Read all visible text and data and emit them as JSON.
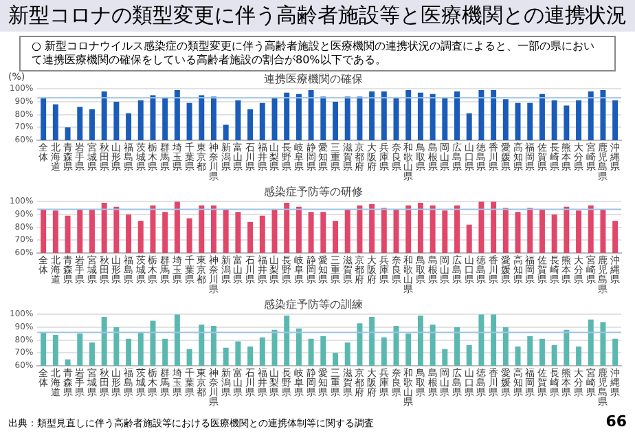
{
  "chart_data": [
    {
      "type": "other",
      "title": "新型コロナの類型変更に伴う高齢者施設等と医療機関との連携状況",
      "subtitle": "○ 新型コロナウイルス感染症の類型変更に伴う高齢者施設と医療機関の連携状況の調査によると、一部の県において連携医療機関の確保をしている高齢者施設の割合が80%以下である。"
    },
    {
      "type": "bar",
      "title": "連携医療機関の確保",
      "ylabel": "(%)",
      "categories": [
        "全体",
        "北海道",
        "青森県",
        "岩手県",
        "宮城県",
        "秋田県",
        "山形県",
        "福島県",
        "茨城県",
        "栃木県",
        "群馬県",
        "埼玉県",
        "千葉県",
        "東京都",
        "神奈川県",
        "新潟県",
        "富山県",
        "石川県",
        "福井県",
        "山梨県",
        "長野県",
        "岐阜県",
        "静岡県",
        "愛知県",
        "三重県",
        "滋賀県",
        "京都府",
        "大阪府",
        "兵庫県",
        "奈良県",
        "和歌山県",
        "鳥取県",
        "島根県",
        "岡山県",
        "広島県",
        "山口県",
        "徳島県",
        "香川県",
        "愛媛県",
        "高知県",
        "福岡県",
        "佐賀県",
        "長崎県",
        "熊本県",
        "大分県",
        "宮崎県",
        "鹿児島県",
        "沖縄県"
      ],
      "values": [
        93,
        88,
        70,
        86,
        84,
        98,
        90,
        81,
        91,
        95,
        93,
        99,
        89,
        95,
        94,
        72,
        91,
        84,
        89,
        93,
        97,
        96,
        99,
        94,
        90,
        94,
        94,
        98,
        98,
        93,
        99,
        97,
        96,
        93,
        98,
        81,
        99,
        99,
        92,
        89,
        89,
        96,
        91,
        87,
        91,
        98,
        99,
        91
      ],
      "color": "#1a5cb8",
      "ylim": [
        60,
        100
      ],
      "yticks": [
        {
          "value": 60,
          "label": "60%"
        },
        {
          "value": 70,
          "label": "70%"
        },
        {
          "value": 80,
          "label": "80%"
        },
        {
          "value": 90,
          "label": "90%"
        },
        {
          "value": 100,
          "label": "100%"
        }
      ],
      "grid": "y",
      "ref_lines": [
        {
          "axis": "y",
          "value": 93,
          "color": "#9dc3e6"
        }
      ]
    },
    {
      "type": "bar",
      "title": "感染症予防等の研修",
      "categories": [
        "全体",
        "北海道",
        "青森県",
        "岩手県",
        "宮城県",
        "秋田県",
        "山形県",
        "福島県",
        "茨城県",
        "栃木県",
        "群馬県",
        "埼玉県",
        "千葉県",
        "東京都",
        "神奈川県",
        "新潟県",
        "富山県",
        "石川県",
        "福井県",
        "山梨県",
        "長野県",
        "岐阜県",
        "静岡県",
        "愛知県",
        "三重県",
        "滋賀県",
        "京都府",
        "大阪府",
        "兵庫県",
        "奈良県",
        "和歌山県",
        "鳥取県",
        "島根県",
        "岡山県",
        "広島県",
        "山口県",
        "徳島県",
        "香川県",
        "愛媛県",
        "高知県",
        "福岡県",
        "佐賀県",
        "長崎県",
        "熊本県",
        "大分県",
        "宮崎県",
        "鹿児島県",
        "沖縄県"
      ],
      "values": [
        94,
        93,
        89,
        94,
        94,
        99,
        96,
        90,
        85,
        97,
        92,
        100,
        87,
        97,
        97,
        94,
        92,
        84,
        89,
        94,
        99,
        96,
        92,
        92,
        85,
        94,
        97,
        98,
        95,
        94,
        97,
        99,
        97,
        93,
        97,
        82,
        100,
        100,
        95,
        92,
        95,
        94,
        90,
        96,
        93,
        97,
        94,
        85
      ],
      "color": "#e0476a",
      "ylim": [
        60,
        100
      ],
      "yticks": [
        {
          "value": 60,
          "label": "60%"
        },
        {
          "value": 70,
          "label": "70%"
        },
        {
          "value": 80,
          "label": "80%"
        },
        {
          "value": 90,
          "label": "90%"
        },
        {
          "value": 100,
          "label": "100%"
        }
      ],
      "grid": "y",
      "ref_lines": [
        {
          "axis": "y",
          "value": 94,
          "color": "#9dc3e6"
        }
      ]
    },
    {
      "type": "bar",
      "title": "感染症予防等の訓練",
      "categories": [
        "全体",
        "北海道",
        "青森県",
        "岩手県",
        "宮城県",
        "秋田県",
        "山形県",
        "福島県",
        "茨城県",
        "栃木県",
        "群馬県",
        "埼玉県",
        "千葉県",
        "東京都",
        "神奈川県",
        "新潟県",
        "富山県",
        "石川県",
        "福井県",
        "山梨県",
        "長野県",
        "岐阜県",
        "静岡県",
        "愛知県",
        "三重県",
        "滋賀県",
        "京都府",
        "大阪府",
        "兵庫県",
        "奈良県",
        "和歌山県",
        "鳥取県",
        "島根県",
        "岡山県",
        "広島県",
        "山口県",
        "徳島県",
        "香川県",
        "愛媛県",
        "高知県",
        "福岡県",
        "佐賀県",
        "長崎県",
        "熊本県",
        "大分県",
        "宮崎県",
        "鹿児島県",
        "沖縄県"
      ],
      "values": [
        86,
        84,
        65,
        85,
        78,
        98,
        90,
        81,
        86,
        95,
        81,
        100,
        73,
        92,
        91,
        74,
        79,
        75,
        82,
        88,
        99,
        89,
        81,
        83,
        70,
        78,
        93,
        98,
        82,
        91,
        85,
        99,
        92,
        73,
        90,
        76,
        100,
        100,
        90,
        75,
        83,
        81,
        76,
        88,
        75,
        96,
        94,
        81
      ],
      "color": "#5ab8b0",
      "ylim": [
        60,
        100
      ],
      "yticks": [
        {
          "value": 60,
          "label": "60%"
        },
        {
          "value": 70,
          "label": "70%"
        },
        {
          "value": 80,
          "label": "80%"
        },
        {
          "value": 90,
          "label": "90%"
        },
        {
          "value": 100,
          "label": "100%"
        }
      ],
      "grid": "y",
      "ref_lines": [
        {
          "axis": "y",
          "value": 86,
          "color": "#9dc3e6"
        }
      ],
      "annotations": [
        "出典：類型見直しに伴う高齢者施設等における医療機関との連携体制等に関する調査",
        "66"
      ]
    }
  ]
}
